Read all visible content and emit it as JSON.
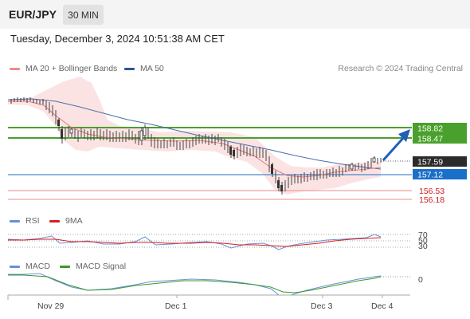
{
  "header": {
    "symbol": "EUR/JPY",
    "timeframe": "30 MIN"
  },
  "datetime": "Tuesday, December 3, 2024 10:51:38 AM CET",
  "legend": {
    "ma20": {
      "label": "MA 20 + Bollinger Bands",
      "color": "#f08a8a"
    },
    "ma50": {
      "label": "MA 50",
      "color": "#2f5597"
    },
    "credit": "Research © 2024 Trading Central"
  },
  "levels": [
    {
      "value": "158.82",
      "kind": "resistance",
      "color": "#4aa02c"
    },
    {
      "value": "158.47",
      "kind": "resistance",
      "color": "#4aa02c"
    },
    {
      "value": "157.59",
      "kind": "last",
      "color": "#333333"
    },
    {
      "value": "157.12",
      "kind": "pivot",
      "color": "#1a6fc9"
    },
    {
      "value": "156.53",
      "kind": "support",
      "color": "#e05555"
    },
    {
      "value": "156.18",
      "kind": "support",
      "color": "#e05555"
    }
  ],
  "rsi": {
    "label": "RSI",
    "ma_label": "9MA",
    "levels": [
      "70",
      "50",
      "30"
    ]
  },
  "macd": {
    "label": "MACD",
    "signal_label": "MACD Signal",
    "zero": "0"
  },
  "x_axis": [
    "Nov 29",
    "Dec 1",
    "Dec 3",
    "Dec 4"
  ]
}
